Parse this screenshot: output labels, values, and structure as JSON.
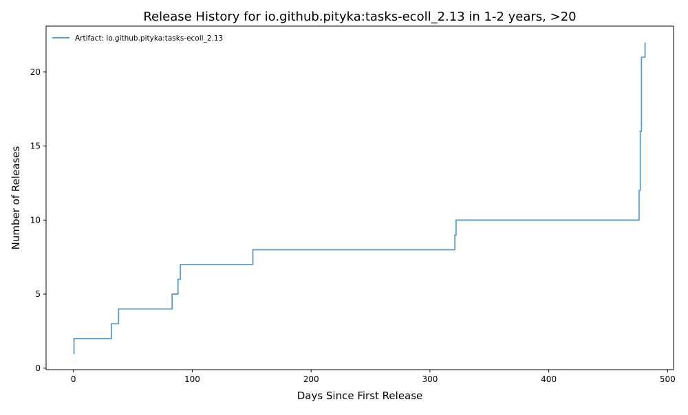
{
  "chart_data": {
    "type": "line",
    "title": "Release History for io.github.pityka:tasks-ecoll_2.13 in 1-2 years, >20",
    "xlabel": "Days Since First Release",
    "ylabel": "Number of Releases",
    "xlim": [
      -23,
      505
    ],
    "ylim": [
      -0.1,
      23.1
    ],
    "xticks": [
      0,
      100,
      200,
      300,
      400,
      500
    ],
    "xtick_labels": [
      "0",
      "100",
      "200",
      "300",
      "400",
      "500"
    ],
    "yticks": [
      0,
      5,
      10,
      15,
      20
    ],
    "ytick_labels": [
      "0",
      "5",
      "10",
      "15",
      "20"
    ],
    "grid": false,
    "legend_position": "top-left",
    "step": "post",
    "series": [
      {
        "name": "Artifact: io.github.pityka:tasks-ecoll_2.13",
        "color": "#5a9fd0",
        "x": [
          0,
          0.5,
          32,
          38,
          83,
          88,
          90,
          151,
          321,
          322,
          476,
          477,
          478,
          481
        ],
        "y": [
          1,
          2,
          3,
          4,
          5,
          6,
          7,
          8,
          9,
          10,
          12,
          16,
          21,
          22
        ]
      }
    ]
  }
}
